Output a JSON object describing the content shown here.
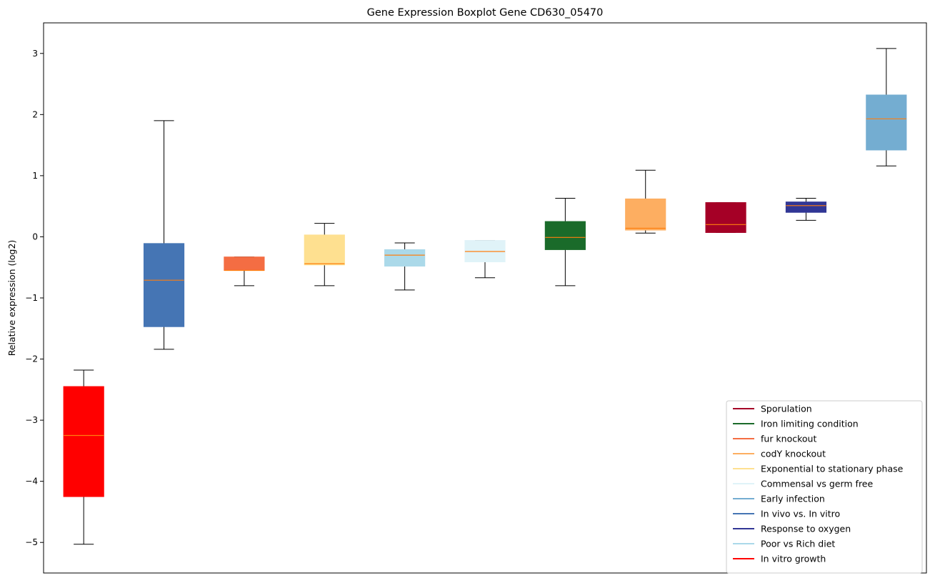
{
  "chart_data": {
    "type": "boxplot",
    "title": "Gene Expression Boxplot Gene CD630_05470",
    "xlabel": "",
    "ylabel": "Relative expression (log2)",
    "ylim": [
      -5.5,
      3.5
    ],
    "yticks": [
      3,
      2,
      1,
      0,
      -1,
      -2,
      -3,
      -4,
      -5
    ],
    "ytick_labels": [
      "3",
      "2",
      "1",
      "0",
      "−1",
      "−2",
      "−3",
      "−4",
      "−5"
    ],
    "grid": false,
    "legend_position": "lower-right",
    "median_color": "#ff7f0e",
    "boxes": [
      {
        "name": "In vitro growth",
        "color": "#ff0000",
        "whisker_low": -5.03,
        "q1": -4.25,
        "median": -3.25,
        "q3": -2.45,
        "whisker_high": -2.18
      },
      {
        "name": "In vivo vs. In vitro",
        "color": "#4575b4",
        "whisker_low": -1.84,
        "q1": -1.47,
        "median": -0.71,
        "q3": -0.11,
        "whisker_high": 1.9
      },
      {
        "name": "fur knockout",
        "color": "#f46d43",
        "whisker_low": -0.8,
        "q1": -0.55,
        "median": -0.55,
        "q3": -0.33,
        "whisker_high": -0.33
      },
      {
        "name": "Exponential to stationary phase",
        "color": "#fee090",
        "whisker_low": -0.8,
        "q1": -0.46,
        "median": -0.44,
        "q3": 0.03,
        "whisker_high": 0.22
      },
      {
        "name": "Poor vs Rich diet",
        "color": "#abd9e9",
        "whisker_low": -0.87,
        "q1": -0.48,
        "median": -0.3,
        "q3": -0.21,
        "whisker_high": -0.1
      },
      {
        "name": "Commensal vs germ free",
        "color": "#e0f3f8",
        "whisker_low": -0.67,
        "q1": -0.41,
        "median": -0.24,
        "q3": -0.06,
        "whisker_high": -0.06
      },
      {
        "name": "Iron limiting condition",
        "color": "#1a6b2a",
        "whisker_low": -0.8,
        "q1": -0.21,
        "median": -0.01,
        "q3": 0.25,
        "whisker_high": 0.63
      },
      {
        "name": "codY knockout",
        "color": "#fdae61",
        "whisker_low": 0.06,
        "q1": 0.11,
        "median": 0.14,
        "q3": 0.62,
        "whisker_high": 1.09
      },
      {
        "name": "Sporulation",
        "color": "#a50026",
        "whisker_low": 0.07,
        "q1": 0.07,
        "median": 0.2,
        "q3": 0.56,
        "whisker_high": 0.56
      },
      {
        "name": "Response to oxygen",
        "color": "#313695",
        "whisker_low": 0.27,
        "q1": 0.4,
        "median": 0.51,
        "q3": 0.57,
        "whisker_high": 0.63
      },
      {
        "name": "Early infection",
        "color": "#74add1",
        "whisker_low": 1.16,
        "q1": 1.42,
        "median": 1.93,
        "q3": 2.32,
        "whisker_high": 3.08
      }
    ],
    "legend": [
      {
        "label": "Sporulation",
        "color": "#a50026"
      },
      {
        "label": "Iron limiting condition",
        "color": "#1a6b2a"
      },
      {
        "label": "fur knockout",
        "color": "#f46d43"
      },
      {
        "label": "codY knockout",
        "color": "#fdae61"
      },
      {
        "label": "Exponential to stationary phase",
        "color": "#fee090"
      },
      {
        "label": "Commensal vs germ free",
        "color": "#e0f3f8"
      },
      {
        "label": "Early infection",
        "color": "#74add1"
      },
      {
        "label": "In vivo vs. In vitro",
        "color": "#4575b4"
      },
      {
        "label": "Response to oxygen",
        "color": "#313695"
      },
      {
        "label": "Poor vs Rich diet",
        "color": "#abd9e9"
      },
      {
        "label": "In vitro growth",
        "color": "#ff0000"
      }
    ]
  }
}
